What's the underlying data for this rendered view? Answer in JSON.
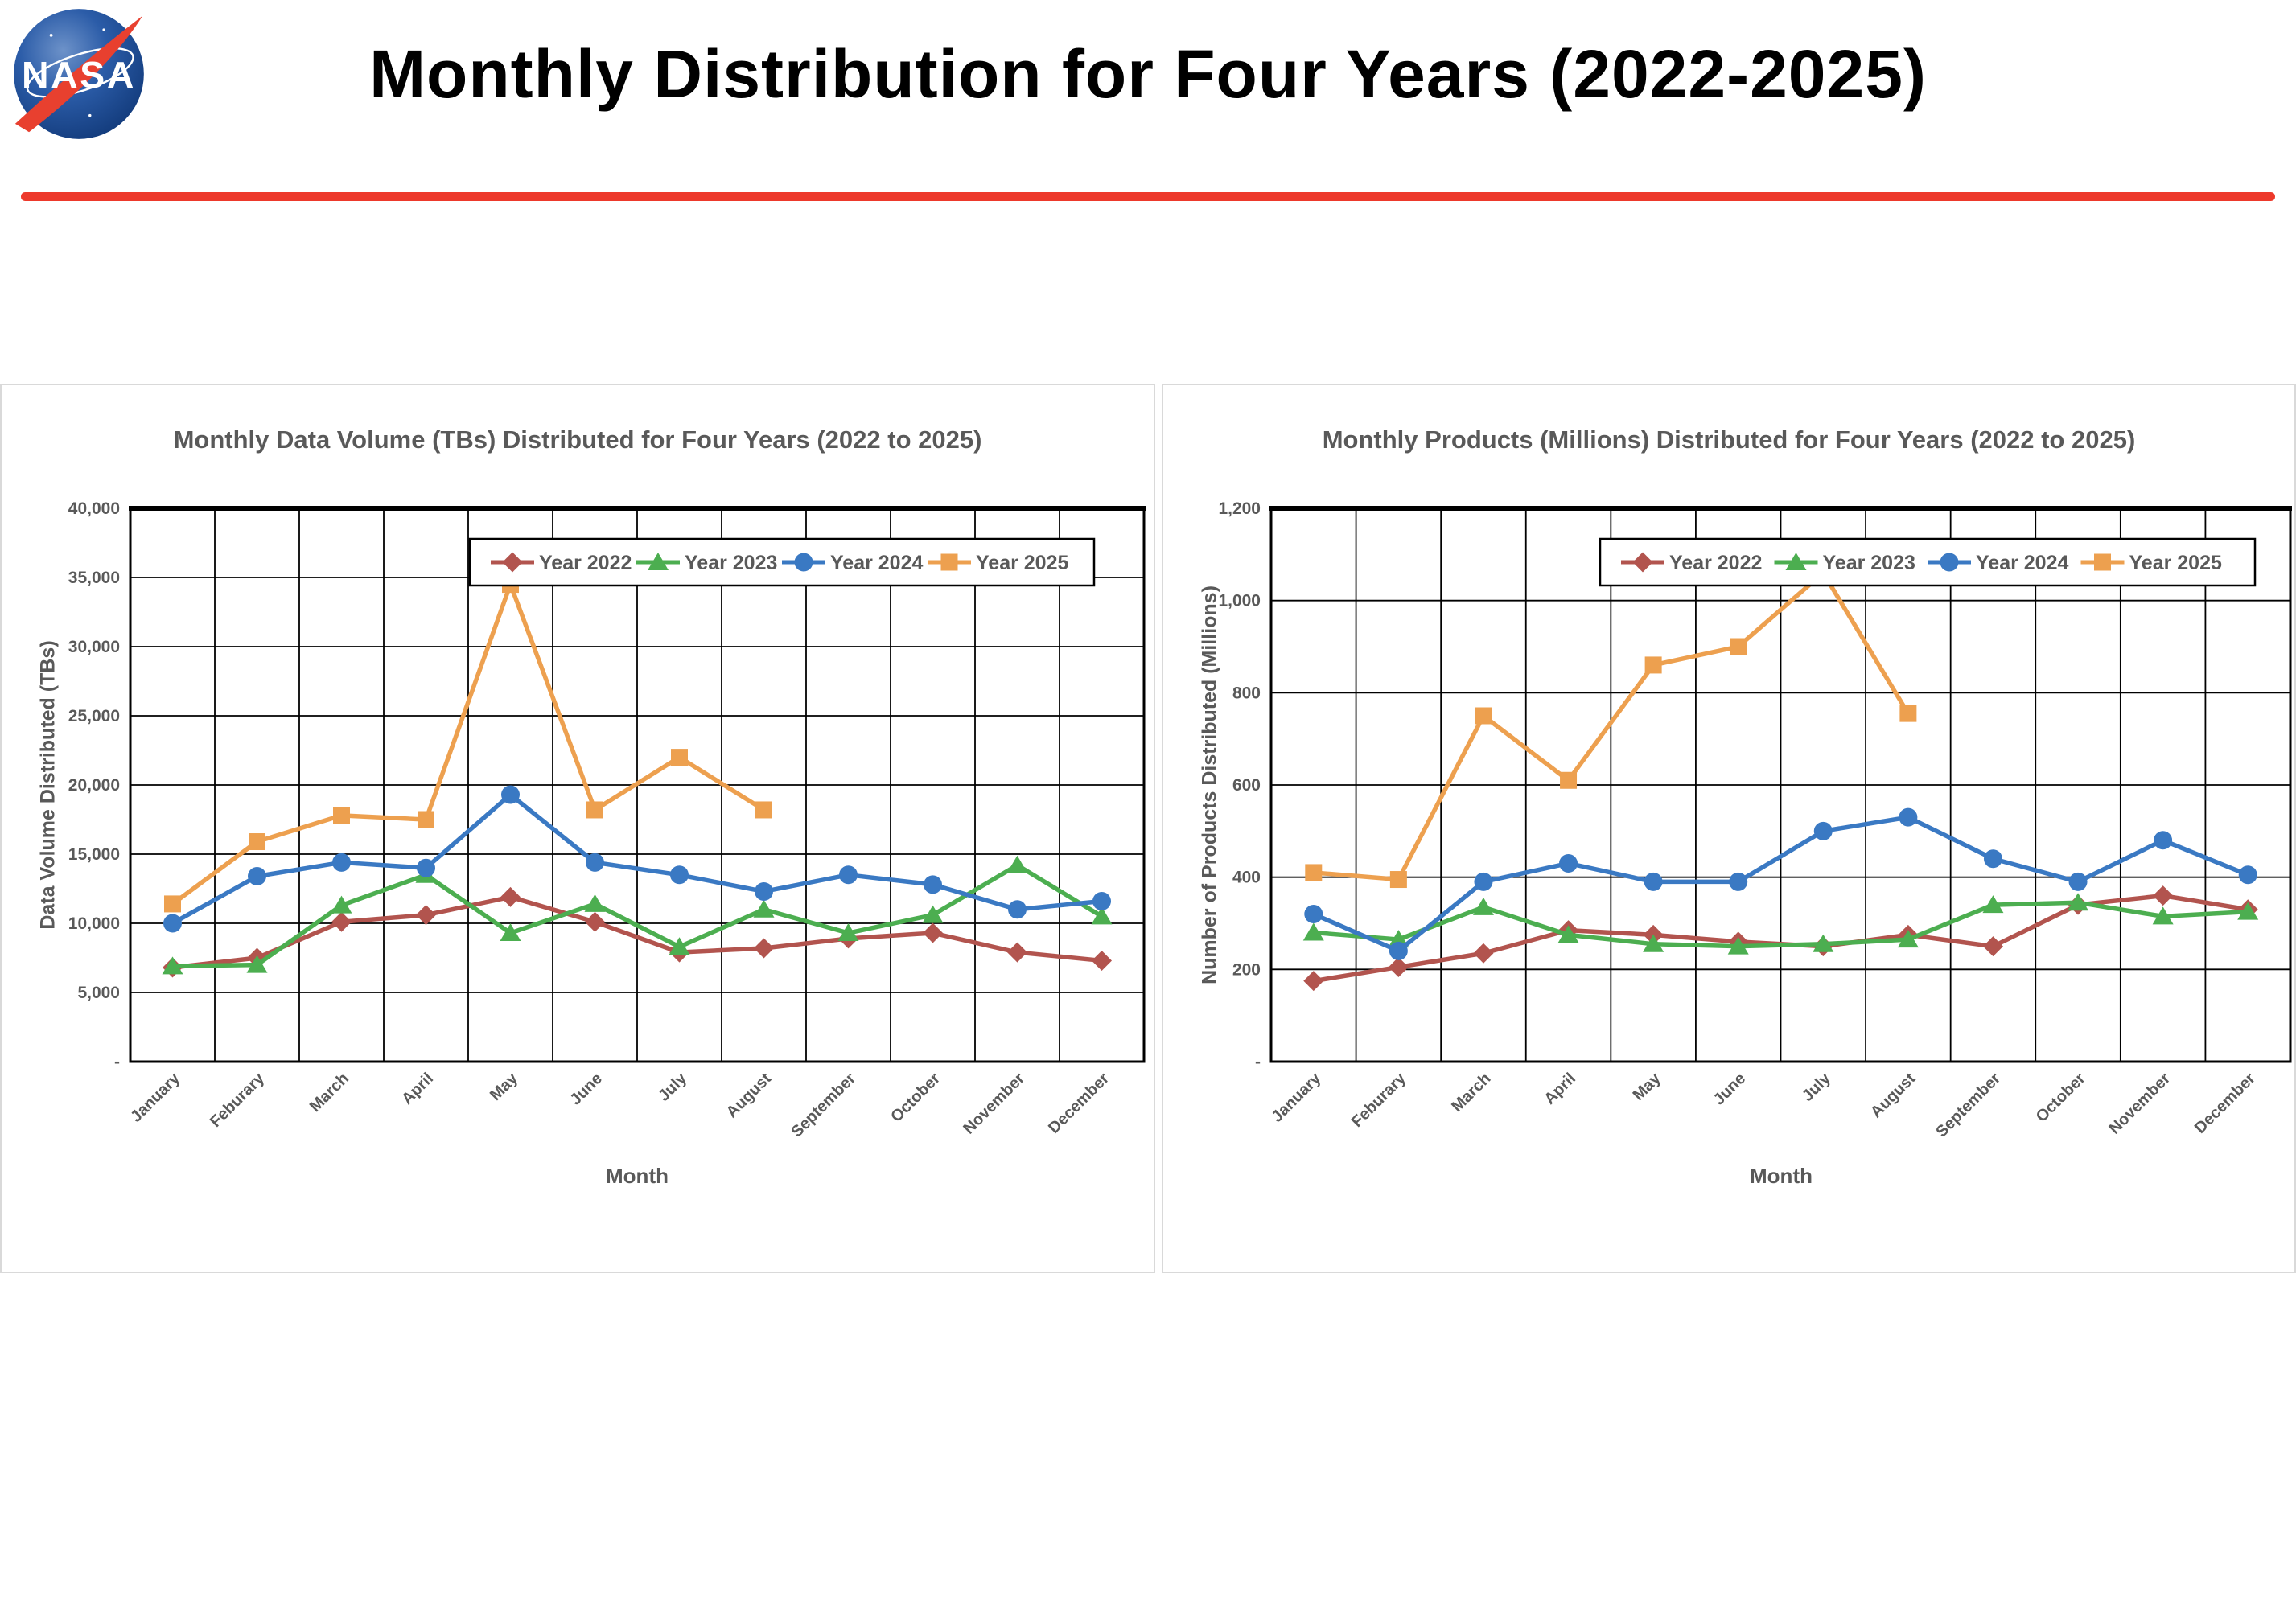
{
  "header": {
    "title": "Monthly Distribution for Four Years (2022-2025)",
    "logo_text": "NASA"
  },
  "months": [
    "January",
    "Feburary",
    "March",
    "April",
    "May",
    "June",
    "July",
    "August",
    "September",
    "October",
    "November",
    "December"
  ],
  "colors": {
    "year_2022": "#B2544E",
    "year_2023": "#4CAE50",
    "year_2024": "#3A79C3",
    "year_2025": "#EDA04F",
    "divider_red": "#ED392B",
    "chart_text": "#595959",
    "grid": "#000000"
  },
  "chart_data": [
    {
      "type": "line",
      "title": "Monthly Data Volume (TBs) Distributed for Four Years (2022 to 2025)",
      "ylabel": "Data Volume Distributed (TBs)",
      "xlabel": "Month",
      "ylim": [
        0,
        40000
      ],
      "ystep": 5000,
      "y_tick_labels": [
        "-",
        "5,000",
        "10,000",
        "15,000",
        "20,000",
        "25,000",
        "30,000",
        "35,000",
        "40,000"
      ],
      "grid": "on",
      "legend_position": "top-inside",
      "categories": [
        "January",
        "Feburary",
        "March",
        "April",
        "May",
        "June",
        "July",
        "August",
        "September",
        "October",
        "November",
        "December"
      ],
      "series": [
        {
          "name": "Year 2022",
          "color": "#B2544E",
          "marker": "diamond",
          "values": [
            6800,
            7500,
            10100,
            10600,
            11900,
            10100,
            7900,
            8200,
            8900,
            9300,
            7900,
            7300
          ]
        },
        {
          "name": "Year 2023",
          "color": "#4CAE50",
          "marker": "triangle",
          "values": [
            6900,
            7000,
            11300,
            13500,
            9300,
            11400,
            8300,
            11000,
            9300,
            10600,
            14200,
            10500
          ]
        },
        {
          "name": "Year 2024",
          "color": "#3A79C3",
          "marker": "circle",
          "values": [
            10000,
            13400,
            14400,
            14000,
            19300,
            14400,
            13500,
            12300,
            13500,
            12800,
            11000,
            11600
          ]
        },
        {
          "name": "Year 2025",
          "color": "#EDA04F",
          "marker": "square",
          "values": [
            11400,
            15900,
            17800,
            17500,
            34500,
            18200,
            22000,
            18200,
            null,
            null,
            null,
            null
          ]
        }
      ]
    },
    {
      "type": "line",
      "title": "Monthly Products (Millions) Distributed for Four Years (2022 to 2025)",
      "ylabel": "Number of Products Distributed (Millions)",
      "xlabel": "Month",
      "ylim": [
        0,
        1200
      ],
      "ystep": 200,
      "y_tick_labels": [
        "-",
        "200",
        "400",
        "600",
        "800",
        "1,000",
        "1,200"
      ],
      "grid": "on",
      "legend_position": "top-inside",
      "categories": [
        "January",
        "Feburary",
        "March",
        "April",
        "May",
        "June",
        "July",
        "August",
        "September",
        "October",
        "November",
        "December"
      ],
      "series": [
        {
          "name": "Year 2022",
          "color": "#B2544E",
          "marker": "diamond",
          "values": [
            175,
            205,
            235,
            285,
            275,
            260,
            250,
            275,
            250,
            340,
            360,
            330
          ]
        },
        {
          "name": "Year 2023",
          "color": "#4CAE50",
          "marker": "triangle",
          "values": [
            280,
            265,
            335,
            275,
            255,
            250,
            255,
            265,
            340,
            345,
            315,
            325
          ]
        },
        {
          "name": "Year 2024",
          "color": "#3A79C3",
          "marker": "circle",
          "values": [
            320,
            240,
            390,
            430,
            390,
            390,
            500,
            530,
            440,
            390,
            480,
            405
          ]
        },
        {
          "name": "Year 2025",
          "color": "#EDA04F",
          "marker": "square",
          "values": [
            410,
            395,
            750,
            610,
            860,
            900,
            1060,
            755,
            null,
            null,
            null,
            null
          ]
        }
      ]
    }
  ]
}
